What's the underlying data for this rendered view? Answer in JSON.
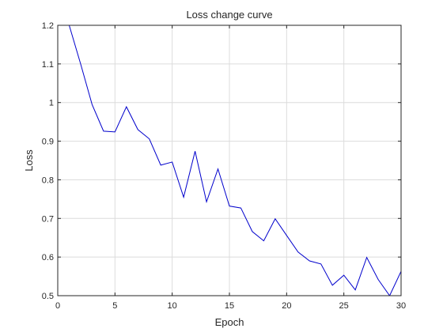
{
  "chart_data": {
    "type": "line",
    "title": "Loss change curve",
    "xlabel": "Epoch",
    "ylabel": "Loss",
    "xlim": [
      0,
      30
    ],
    "ylim": [
      0.5,
      1.2
    ],
    "xticks": [
      0,
      5,
      10,
      15,
      20,
      25,
      30
    ],
    "yticks": [
      0.5,
      0.6,
      0.7,
      0.8,
      0.9,
      1,
      1.1,
      1.2
    ],
    "grid": true,
    "series": [
      {
        "color": "#0000cc",
        "x": [
          1,
          2,
          3,
          4,
          5,
          6,
          7,
          8,
          9,
          10,
          11,
          12,
          13,
          14,
          15,
          16,
          17,
          18,
          19,
          20,
          21,
          22,
          23,
          24,
          25,
          26,
          27,
          28,
          29,
          30
        ],
        "y": [
          1.2,
          1.1,
          0.995,
          0.926,
          0.924,
          0.989,
          0.93,
          0.906,
          0.838,
          0.846,
          0.755,
          0.874,
          0.743,
          0.828,
          0.732,
          0.727,
          0.666,
          0.642,
          0.699,
          0.656,
          0.613,
          0.59,
          0.582,
          0.527,
          0.553,
          0.515,
          0.599,
          0.542,
          0.5,
          0.563
        ]
      }
    ]
  }
}
